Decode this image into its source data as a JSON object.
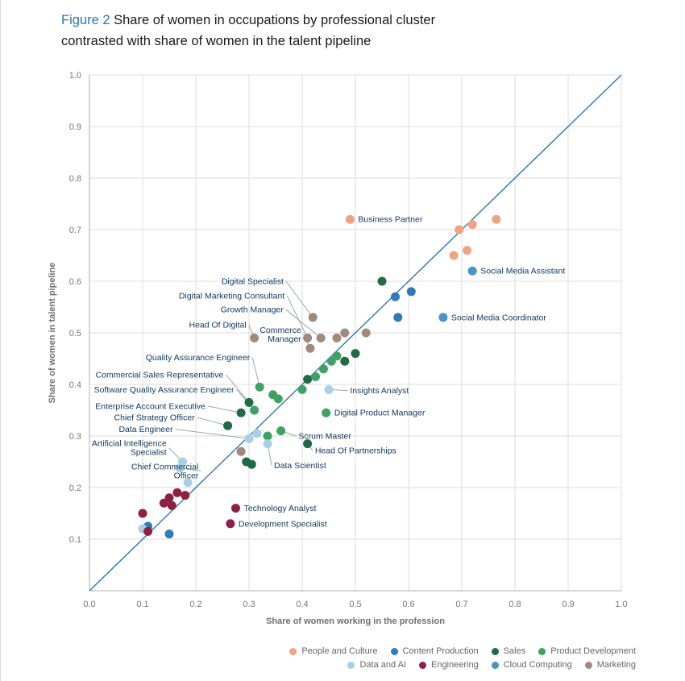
{
  "title": {
    "figure_label": "Figure 2",
    "text": "Share of women in occupations by professional cluster contrasted with share of women in the talent pipeline"
  },
  "chart_data": {
    "type": "scatter",
    "xlabel": "Share of women working in the profession",
    "ylabel": "Share of women in talent pipeline",
    "xlim": [
      0,
      1
    ],
    "ylim": [
      0,
      1
    ],
    "xticks": [
      0,
      0.1,
      0.2,
      0.3,
      0.4,
      0.5,
      0.6,
      0.7,
      0.8,
      0.9,
      1.0
    ],
    "yticks": [
      0.1,
      0.2,
      0.3,
      0.4,
      0.5,
      0.6,
      0.7,
      0.8,
      0.9,
      1.0
    ],
    "grid": true,
    "identity_line": true,
    "legend_position": "bottom-right",
    "clusters": [
      {
        "id": "people_culture",
        "label": "People and Culture",
        "color": "#F0A384"
      },
      {
        "id": "content_production",
        "label": "Content Production",
        "color": "#2E7CB5"
      },
      {
        "id": "sales",
        "label": "Sales",
        "color": "#206B46"
      },
      {
        "id": "product_development",
        "label": "Product Development",
        "color": "#3FA264"
      },
      {
        "id": "data_ai",
        "label": "Data and AI",
        "color": "#A9CFE5"
      },
      {
        "id": "engineering",
        "label": "Engineering",
        "color": "#8E2043"
      },
      {
        "id": "cloud_computing",
        "label": "Cloud Computing",
        "color": "#4695C6"
      },
      {
        "id": "marketing",
        "label": "Marketing",
        "color": "#A08A7E"
      }
    ],
    "points": [
      {
        "x": 0.49,
        "y": 0.72,
        "c": "people_culture",
        "label": "Business Partner",
        "side": "right"
      },
      {
        "x": 0.695,
        "y": 0.7,
        "c": "people_culture"
      },
      {
        "x": 0.72,
        "y": 0.71,
        "c": "people_culture"
      },
      {
        "x": 0.765,
        "y": 0.72,
        "c": "people_culture"
      },
      {
        "x": 0.71,
        "y": 0.66,
        "c": "people_culture"
      },
      {
        "x": 0.685,
        "y": 0.65,
        "c": "people_culture"
      },
      {
        "x": 0.575,
        "y": 0.57,
        "c": "content_production"
      },
      {
        "x": 0.605,
        "y": 0.58,
        "c": "content_production"
      },
      {
        "x": 0.58,
        "y": 0.53,
        "c": "content_production"
      },
      {
        "x": 0.15,
        "y": 0.11,
        "c": "content_production"
      },
      {
        "x": 0.11,
        "y": 0.125,
        "c": "content_production"
      },
      {
        "x": 0.72,
        "y": 0.62,
        "c": "cloud_computing",
        "label": "Social Media Assistant",
        "side": "right"
      },
      {
        "x": 0.665,
        "y": 0.53,
        "c": "cloud_computing",
        "label": "Social Media Coordinator",
        "side": "right"
      },
      {
        "x": 0.42,
        "y": 0.53,
        "c": "marketing",
        "label": "Digital Specialist",
        "leader": {
          "lx": 0.365,
          "ly": 0.6,
          "align": "end"
        }
      },
      {
        "x": 0.41,
        "y": 0.49,
        "c": "marketing",
        "label": "Digital Marketing Consultant",
        "leader": {
          "lx": 0.367,
          "ly": 0.572,
          "align": "end"
        }
      },
      {
        "x": 0.435,
        "y": 0.49,
        "c": "marketing",
        "label": "Growth Manager",
        "leader": {
          "lx": 0.365,
          "ly": 0.545,
          "align": "end"
        }
      },
      {
        "x": 0.31,
        "y": 0.49,
        "c": "marketing",
        "label": "Head Of Digital",
        "leader": {
          "lx": 0.295,
          "ly": 0.516,
          "align": "end"
        }
      },
      {
        "x": 0.415,
        "y": 0.47,
        "c": "marketing",
        "label": [
          "Commerce",
          "Manager"
        ],
        "leader": {
          "lx": 0.398,
          "ly": 0.497,
          "align": "end"
        }
      },
      {
        "x": 0.465,
        "y": 0.49,
        "c": "marketing"
      },
      {
        "x": 0.48,
        "y": 0.5,
        "c": "marketing"
      },
      {
        "x": 0.52,
        "y": 0.5,
        "c": "marketing"
      },
      {
        "x": 0.285,
        "y": 0.27,
        "c": "marketing"
      },
      {
        "x": 0.55,
        "y": 0.6,
        "c": "sales"
      },
      {
        "x": 0.5,
        "y": 0.46,
        "c": "sales"
      },
      {
        "x": 0.48,
        "y": 0.445,
        "c": "sales"
      },
      {
        "x": 0.41,
        "y": 0.41,
        "c": "sales"
      },
      {
        "x": 0.3,
        "y": 0.365,
        "c": "sales",
        "label": "Commercial Sales Representative",
        "leader": {
          "lx": 0.252,
          "ly": 0.419,
          "align": "end"
        }
      },
      {
        "x": 0.285,
        "y": 0.345,
        "c": "sales",
        "label": "Enterprise Account Executive",
        "leader": {
          "lx": 0.218,
          "ly": 0.358,
          "align": "end"
        }
      },
      {
        "x": 0.26,
        "y": 0.32,
        "c": "sales",
        "label": "Chief Strategy Officer",
        "leader": {
          "lx": 0.198,
          "ly": 0.336,
          "align": "end"
        }
      },
      {
        "x": 0.41,
        "y": 0.285,
        "c": "sales",
        "label": "Head Of Partnerships",
        "leader": {
          "lx": 0.424,
          "ly": 0.272,
          "align": "start"
        }
      },
      {
        "x": 0.295,
        "y": 0.25,
        "c": "sales"
      },
      {
        "x": 0.305,
        "y": 0.245,
        "c": "sales"
      },
      {
        "x": 0.32,
        "y": 0.395,
        "c": "product_development",
        "label": "Quality Assurance Engineer",
        "leader": {
          "lx": 0.302,
          "ly": 0.452,
          "align": "end"
        }
      },
      {
        "x": 0.31,
        "y": 0.35,
        "c": "product_development",
        "label": "Software Quality Assurance Engineer",
        "leader": {
          "lx": 0.272,
          "ly": 0.39,
          "align": "end"
        }
      },
      {
        "x": 0.345,
        "y": 0.38,
        "c": "product_development"
      },
      {
        "x": 0.355,
        "y": 0.372,
        "c": "product_development"
      },
      {
        "x": 0.4,
        "y": 0.39,
        "c": "product_development"
      },
      {
        "x": 0.425,
        "y": 0.415,
        "c": "product_development"
      },
      {
        "x": 0.44,
        "y": 0.43,
        "c": "product_development"
      },
      {
        "x": 0.455,
        "y": 0.445,
        "c": "product_development"
      },
      {
        "x": 0.465,
        "y": 0.455,
        "c": "product_development"
      },
      {
        "x": 0.445,
        "y": 0.345,
        "c": "product_development",
        "label": "Digital Product Manager",
        "side": "right"
      },
      {
        "x": 0.36,
        "y": 0.31,
        "c": "product_development",
        "label": "Scrum Master",
        "leader": {
          "lx": 0.393,
          "ly": 0.3,
          "align": "start"
        }
      },
      {
        "x": 0.335,
        "y": 0.3,
        "c": "product_development"
      },
      {
        "x": 0.45,
        "y": 0.39,
        "c": "data_ai",
        "label": "Insights Analyst",
        "leader": {
          "lx": 0.49,
          "ly": 0.388,
          "align": "start"
        }
      },
      {
        "x": 0.335,
        "y": 0.285,
        "c": "data_ai",
        "label": "Data Scientist",
        "leader": {
          "lx": 0.347,
          "ly": 0.243,
          "align": "start"
        }
      },
      {
        "x": 0.3,
        "y": 0.295,
        "c": "data_ai",
        "label": "Data Engineer",
        "leader": {
          "lx": 0.157,
          "ly": 0.313,
          "align": "end"
        }
      },
      {
        "x": 0.315,
        "y": 0.305,
        "c": "data_ai"
      },
      {
        "x": 0.175,
        "y": 0.25,
        "c": "data_ai",
        "label": [
          "Artificial Intelligence",
          "Specialist"
        ],
        "leader": {
          "lx": 0.145,
          "ly": 0.277,
          "align": "end"
        }
      },
      {
        "x": 0.17,
        "y": 0.238,
        "c": "data_ai",
        "label": [
          "Chief Commercial",
          "Officer"
        ],
        "leader": {
          "lx": 0.205,
          "ly": 0.232,
          "align": "end"
        }
      },
      {
        "x": 0.185,
        "y": 0.21,
        "c": "data_ai"
      },
      {
        "x": 0.1,
        "y": 0.12,
        "c": "data_ai"
      },
      {
        "x": 0.275,
        "y": 0.16,
        "c": "engineering",
        "label": "Technology Analyst",
        "side": "right"
      },
      {
        "x": 0.265,
        "y": 0.13,
        "c": "engineering",
        "label": "Development Specialist",
        "side": "right"
      },
      {
        "x": 0.1,
        "y": 0.15,
        "c": "engineering"
      },
      {
        "x": 0.11,
        "y": 0.115,
        "c": "engineering"
      },
      {
        "x": 0.14,
        "y": 0.17,
        "c": "engineering"
      },
      {
        "x": 0.15,
        "y": 0.18,
        "c": "engineering"
      },
      {
        "x": 0.155,
        "y": 0.165,
        "c": "engineering"
      },
      {
        "x": 0.165,
        "y": 0.19,
        "c": "engineering"
      },
      {
        "x": 0.18,
        "y": 0.185,
        "c": "engineering"
      }
    ]
  },
  "legend": {
    "rows": [
      [
        "people_culture",
        "content_production",
        "sales",
        "product_development"
      ],
      [
        "data_ai",
        "engineering",
        "cloud_computing",
        "marketing"
      ]
    ]
  }
}
